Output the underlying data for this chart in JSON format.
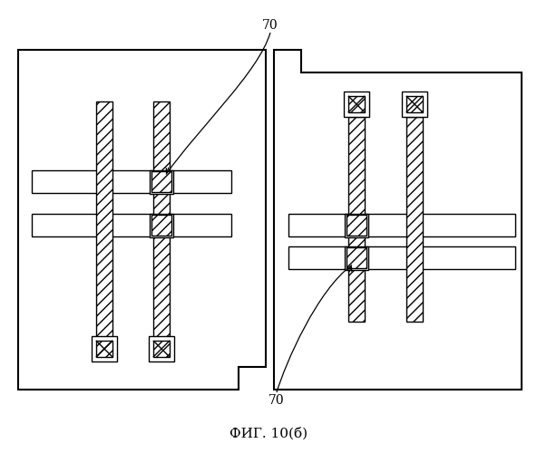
{
  "title": "ФИГ. 10(б)",
  "label_70": "70",
  "bg_color": "#ffffff",
  "line_color": "#000000",
  "fig_width": 5.92,
  "fig_height": 5.0,
  "dpi": 100
}
